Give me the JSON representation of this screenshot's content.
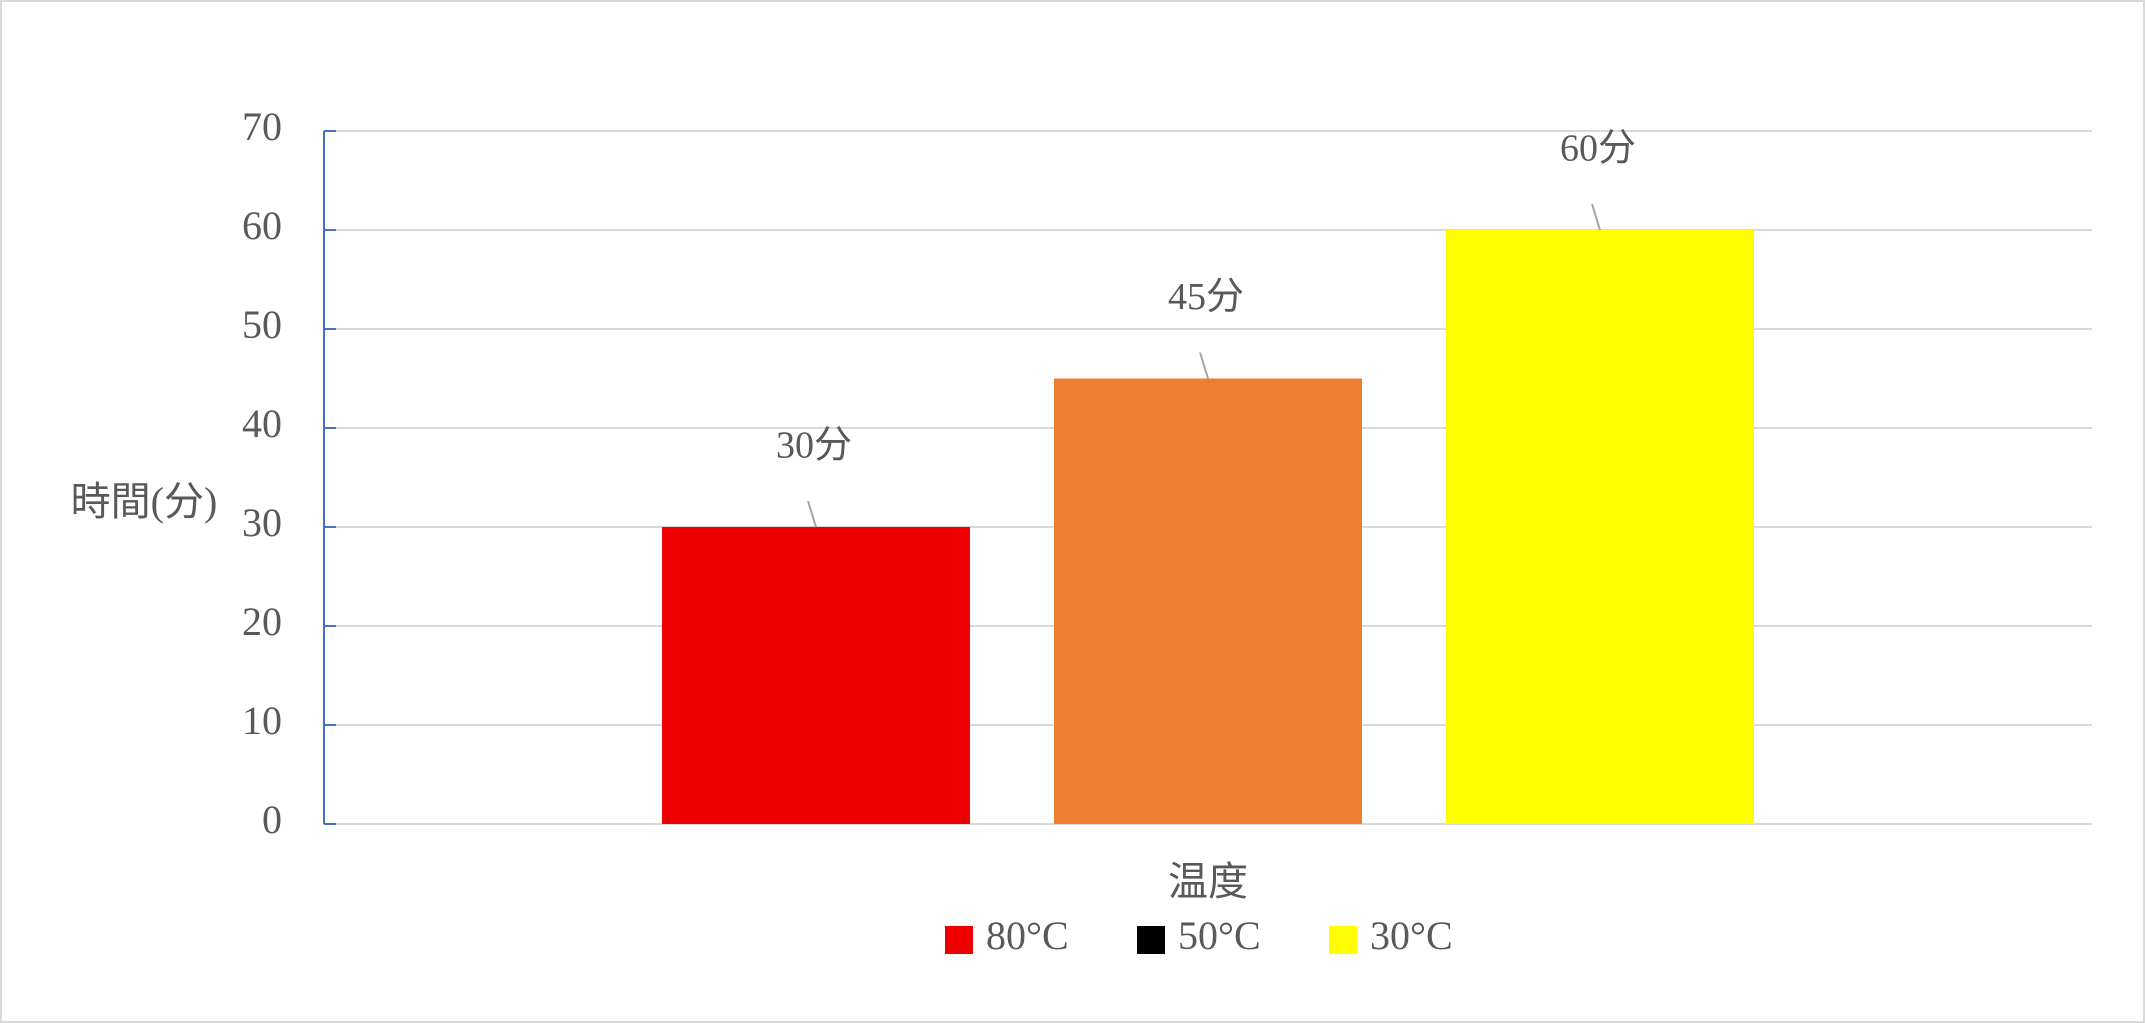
{
  "chart_data": {
    "type": "bar",
    "y_label": "時間(分)",
    "x_label": "温度",
    "categories": [
      null
    ],
    "series": [
      {
        "name": "80°C",
        "color": "#ee0000",
        "legend_color": "#ee0000",
        "values": [
          30
        ],
        "value_labels": [
          "30分"
        ]
      },
      {
        "name": "50°C",
        "color": "#ed7d31",
        "legend_color": "#000000",
        "values": [
          45
        ],
        "value_labels": [
          "45分"
        ]
      },
      {
        "name": "30°C",
        "color": "#ffff00",
        "legend_color": "#ffff00",
        "values": [
          60
        ],
        "value_labels": [
          "60分"
        ]
      }
    ],
    "ylim": [
      0,
      70
    ],
    "yticks": [
      0,
      10,
      20,
      30,
      40,
      50,
      60,
      70
    ],
    "grid": true,
    "legend": "bottom"
  }
}
